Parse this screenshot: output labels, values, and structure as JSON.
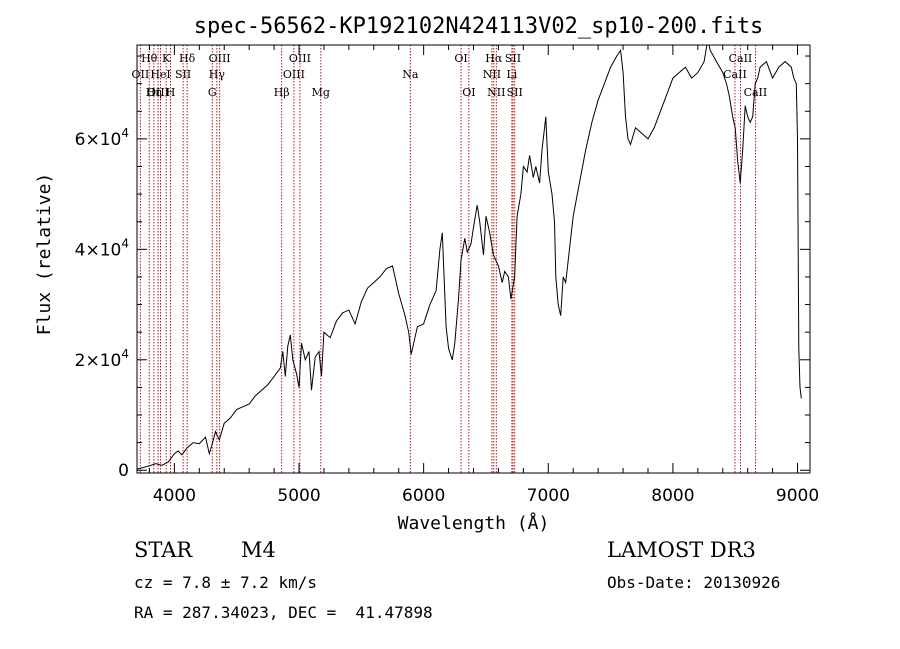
{
  "chart_data": {
    "type": "line",
    "title": "spec-56562-KP192102N424113V02_sp10-200.fits",
    "xlabel": "Wavelength (Å)",
    "ylabel": "Flux (relative)",
    "xlim": [
      3700,
      9100
    ],
    "ylim": [
      -500,
      77000
    ],
    "x_ticks": [
      {
        "value": 4000,
        "label": "4000"
      },
      {
        "value": 5000,
        "label": "5000"
      },
      {
        "value": 6000,
        "label": "6000"
      },
      {
        "value": 7000,
        "label": "7000"
      },
      {
        "value": 8000,
        "label": "8000"
      },
      {
        "value": 9000,
        "label": "9000"
      }
    ],
    "y_ticks": [
      {
        "value": 0,
        "label": "0",
        "exp": ""
      },
      {
        "value": 20000,
        "label": "2×10",
        "exp": "4"
      },
      {
        "value": 40000,
        "label": "4×10",
        "exp": "4"
      },
      {
        "value": 60000,
        "label": "6×10",
        "exp": "4"
      }
    ],
    "series": [
      {
        "name": "spectrum",
        "x": [
          3700,
          3750,
          3800,
          3850,
          3900,
          3950,
          4000,
          4030,
          4060,
          4100,
          4150,
          4200,
          4250,
          4280,
          4300,
          4330,
          4360,
          4400,
          4450,
          4500,
          4550,
          4600,
          4650,
          4700,
          4750,
          4800,
          4850,
          4870,
          4890,
          4910,
          4930,
          4950,
          4980,
          5000,
          5020,
          5050,
          5080,
          5100,
          5130,
          5160,
          5180,
          5200,
          5250,
          5300,
          5350,
          5400,
          5450,
          5500,
          5550,
          5600,
          5650,
          5700,
          5750,
          5800,
          5850,
          5880,
          5900,
          5950,
          6000,
          6050,
          6100,
          6130,
          6150,
          6180,
          6200,
          6230,
          6250,
          6280,
          6300,
          6330,
          6350,
          6380,
          6400,
          6430,
          6450,
          6480,
          6500,
          6530,
          6560,
          6600,
          6630,
          6650,
          6680,
          6700,
          6730,
          6750,
          6780,
          6800,
          6830,
          6850,
          6880,
          6900,
          6930,
          6950,
          6980,
          7000,
          7030,
          7050,
          7060,
          7080,
          7100,
          7120,
          7140,
          7160,
          7200,
          7250,
          7300,
          7350,
          7400,
          7450,
          7500,
          7550,
          7580,
          7600,
          7620,
          7640,
          7660,
          7700,
          7750,
          7800,
          7850,
          7900,
          7950,
          8000,
          8050,
          8100,
          8150,
          8200,
          8250,
          8280,
          8300,
          8350,
          8400,
          8430,
          8450,
          8480,
          8500,
          8520,
          8540,
          8560,
          8580,
          8600,
          8620,
          8640,
          8660,
          8680,
          8700,
          8750,
          8800,
          8850,
          8900,
          8950,
          8970,
          8990,
          9000,
          9010,
          9020,
          9030
        ],
        "values": [
          200,
          500,
          800,
          1200,
          900,
          1500,
          3000,
          3500,
          2800,
          4000,
          5000,
          4800,
          6000,
          3000,
          4500,
          7000,
          5500,
          8500,
          9500,
          11000,
          11500,
          12000,
          13500,
          14500,
          15500,
          17000,
          18500,
          21500,
          17000,
          22500,
          24500,
          20000,
          17500,
          15000,
          23000,
          20000,
          21500,
          14500,
          20500,
          21500,
          17000,
          25000,
          24000,
          27000,
          28500,
          29000,
          26500,
          30500,
          33000,
          34000,
          35000,
          36500,
          37000,
          32000,
          28000,
          25000,
          21000,
          26000,
          26500,
          30000,
          32500,
          40000,
          43000,
          26000,
          22000,
          20000,
          23000,
          31000,
          38000,
          42000,
          39500,
          41000,
          44000,
          48000,
          45000,
          39000,
          46000,
          43000,
          39000,
          37000,
          34000,
          36000,
          35000,
          31000,
          35000,
          46000,
          50000,
          55000,
          54000,
          57000,
          53000,
          55000,
          52000,
          58000,
          64000,
          54000,
          50000,
          45000,
          35000,
          30000,
          28000,
          35000,
          34000,
          38000,
          46000,
          52000,
          58000,
          63000,
          67000,
          70000,
          73000,
          75000,
          76000,
          72000,
          64000,
          60000,
          59000,
          62000,
          61000,
          60000,
          62000,
          65000,
          68000,
          71000,
          72000,
          73000,
          71000,
          72000,
          74000,
          78000,
          76000,
          74000,
          72000,
          70000,
          68000,
          64000,
          62000,
          56000,
          52000,
          58000,
          66000,
          64000,
          63000,
          64000,
          70000,
          71000,
          73000,
          74000,
          71000,
          73000,
          74000,
          73000,
          71000,
          70000,
          60000,
          22000,
          15000,
          13000
        ]
      }
    ],
    "lines": [
      {
        "label": "Hθ",
        "wl": 3798,
        "row": 1
      },
      {
        "label": "OII",
        "wl": 3727,
        "row": 2
      },
      {
        "label": "OIII",
        "wl": 3869,
        "row": 3
      },
      {
        "label": "K",
        "wl": 3934,
        "row": 1
      },
      {
        "label": "HeI",
        "wl": 3889,
        "row": 2
      },
      {
        "label": "H",
        "wl": 3969,
        "row": 3
      },
      {
        "label": "Hη",
        "wl": 3835,
        "row": 3
      },
      {
        "label": "SII",
        "wl": 4070,
        "row": 2
      },
      {
        "label": "Hδ",
        "wl": 4102,
        "row": 1
      },
      {
        "label": "OIII",
        "wl": 4363,
        "row": 1
      },
      {
        "label": "Hγ",
        "wl": 4341,
        "row": 2
      },
      {
        "label": "G",
        "wl": 4304,
        "row": 3
      },
      {
        "label": "Hβ",
        "wl": 4861,
        "row": 3
      },
      {
        "label": "OIII",
        "wl": 5007,
        "row": 1
      },
      {
        "label": "OIII",
        "wl": 4959,
        "row": 2
      },
      {
        "label": "Mg",
        "wl": 5175,
        "row": 3
      },
      {
        "label": "Na",
        "wl": 5893,
        "row": 2
      },
      {
        "label": "OI",
        "wl": 6300,
        "row": 1
      },
      {
        "label": "OI",
        "wl": 6363,
        "row": 3
      },
      {
        "label": "Hα",
        "wl": 6563,
        "row": 1
      },
      {
        "label": "NII",
        "wl": 6548,
        "row": 2
      },
      {
        "label": "NII",
        "wl": 6583,
        "row": 3
      },
      {
        "label": "SII",
        "wl": 6717,
        "row": 1
      },
      {
        "label": "Li",
        "wl": 6708,
        "row": 2
      },
      {
        "label": "SII",
        "wl": 6731,
        "row": 3
      },
      {
        "label": "CaII",
        "wl": 8542,
        "row": 1
      },
      {
        "label": "CaII",
        "wl": 8498,
        "row": 2
      },
      {
        "label": "CaII",
        "wl": 8662,
        "row": 3
      }
    ],
    "colors": {
      "spectrum": "#000000",
      "lines": "#b40000",
      "axes": "#000000"
    }
  },
  "info": {
    "class_label": "STAR",
    "subclass": "M4",
    "survey": "LAMOST DR3",
    "cz": "cz = 7.8 ± 7.2 km/s",
    "obs_date": "Obs-Date: 20130926",
    "radec": "RA = 287.34023, DEC =  41.47898"
  }
}
